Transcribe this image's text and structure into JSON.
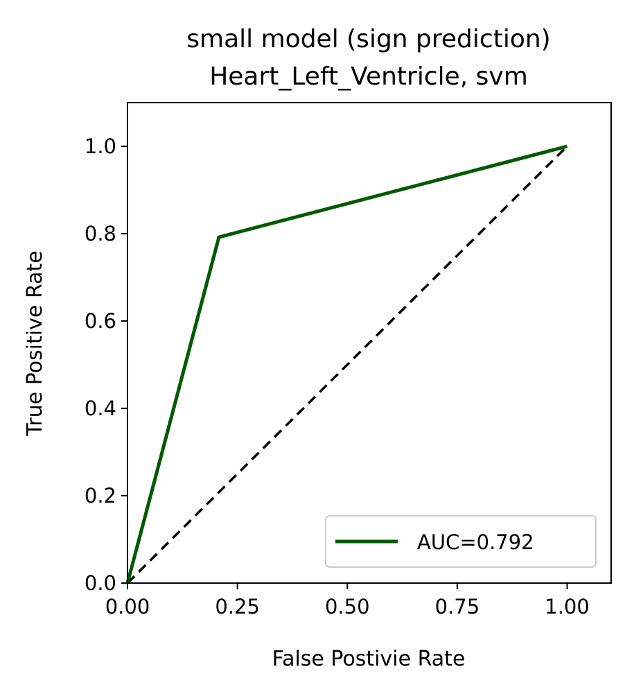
{
  "chart_data": {
    "type": "line",
    "title": "small model (sign prediction)",
    "subtitle": "Heart_Left_Ventricle, svm",
    "xlabel": "False Postivie Rate",
    "ylabel": "True Positive Rate",
    "xlim": [
      0,
      1.1
    ],
    "ylim": [
      0,
      1.1
    ],
    "xticks": [
      0,
      0.25,
      0.5,
      0.75,
      1.0
    ],
    "xtick_labels": [
      "0.00",
      "0.25",
      "0.50",
      "0.75",
      "1.00"
    ],
    "yticks": [
      0,
      0.2,
      0.4,
      0.6,
      0.8,
      1.0
    ],
    "ytick_labels": [
      "0.0",
      "0.2",
      "0.4",
      "0.6",
      "0.8",
      "1.0"
    ],
    "grid": false,
    "legend_position": "lower-right",
    "series": [
      {
        "name": "AUC=0.792",
        "x": [
          0,
          0.208,
          1.0
        ],
        "y": [
          0,
          0.792,
          1.0
        ],
        "color": "#005a00",
        "style": "solid"
      },
      {
        "x": [
          0,
          1.0
        ],
        "y": [
          0,
          1.0
        ],
        "color": "#000000",
        "style": "dashed"
      }
    ]
  }
}
